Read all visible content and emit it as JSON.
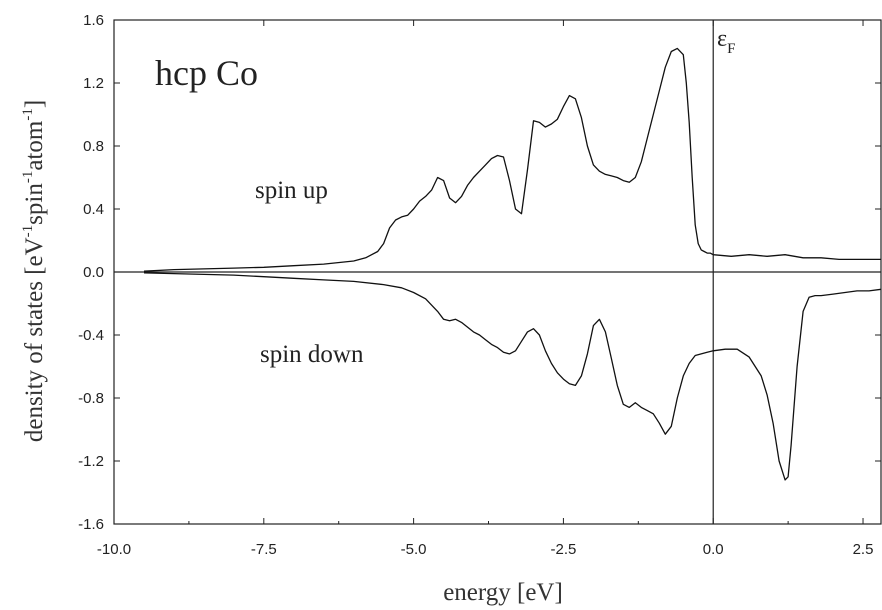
{
  "chart_data": {
    "type": "line",
    "title": "hcp Co",
    "xlabel": "energy [eV]",
    "ylabel": {
      "base": "density of states [eV",
      "sup1": "-1",
      "mid1": "spin",
      "sup2": "-1",
      "mid2": "atom",
      "sup3": "-1",
      "end": "]"
    },
    "xlim": [
      -10.0,
      2.8
    ],
    "ylim": [
      -1.6,
      1.6
    ],
    "xticks": [
      -10.0,
      -7.5,
      -5.0,
      -2.5,
      0.0,
      2.5
    ],
    "xtick_labels": [
      "-10.0",
      "-7.5",
      "-5.0",
      "-2.5",
      "0.0",
      "2.5"
    ],
    "yticks": [
      -1.6,
      -1.2,
      -0.8,
      -0.4,
      0.0,
      0.4,
      0.8,
      1.2,
      1.6
    ],
    "ytick_labels": [
      "-1.6",
      "-1.2",
      "-0.8",
      "-0.4",
      "0.0",
      "0.4",
      "0.8",
      "1.2",
      "1.6"
    ],
    "fermi_level": {
      "x": 0.0,
      "label": "ε",
      "subscript": "F"
    },
    "annotations": [
      {
        "text": "spin up"
      },
      {
        "text": "spin down"
      }
    ],
    "series": [
      {
        "name": "spin up",
        "x": [
          -9.5,
          -9.0,
          -8.5,
          -8.0,
          -7.5,
          -7.0,
          -6.5,
          -6.0,
          -5.8,
          -5.6,
          -5.5,
          -5.4,
          -5.3,
          -5.2,
          -5.1,
          -5.0,
          -4.9,
          -4.8,
          -4.7,
          -4.6,
          -4.5,
          -4.4,
          -4.3,
          -4.2,
          -4.1,
          -4.0,
          -3.9,
          -3.8,
          -3.7,
          -3.6,
          -3.5,
          -3.4,
          -3.3,
          -3.2,
          -3.1,
          -3.0,
          -2.9,
          -2.8,
          -2.7,
          -2.6,
          -2.5,
          -2.4,
          -2.3,
          -2.2,
          -2.1,
          -2.0,
          -1.9,
          -1.8,
          -1.7,
          -1.6,
          -1.5,
          -1.4,
          -1.3,
          -1.2,
          -1.1,
          -1.0,
          -0.9,
          -0.8,
          -0.7,
          -0.6,
          -0.5,
          -0.45,
          -0.4,
          -0.35,
          -0.3,
          -0.25,
          -0.2,
          -0.15,
          -0.1,
          -0.05,
          0.0,
          0.3,
          0.6,
          0.9,
          1.2,
          1.5,
          1.8,
          2.1,
          2.4,
          2.7,
          2.8
        ],
        "y": [
          0.005,
          0.015,
          0.02,
          0.025,
          0.03,
          0.04,
          0.05,
          0.07,
          0.09,
          0.13,
          0.18,
          0.28,
          0.33,
          0.35,
          0.36,
          0.4,
          0.45,
          0.48,
          0.52,
          0.6,
          0.58,
          0.47,
          0.44,
          0.48,
          0.55,
          0.6,
          0.64,
          0.68,
          0.72,
          0.74,
          0.73,
          0.58,
          0.4,
          0.37,
          0.65,
          0.96,
          0.95,
          0.92,
          0.94,
          0.97,
          1.05,
          1.12,
          1.1,
          0.98,
          0.8,
          0.68,
          0.64,
          0.62,
          0.61,
          0.6,
          0.58,
          0.57,
          0.6,
          0.7,
          0.85,
          1.0,
          1.15,
          1.3,
          1.4,
          1.42,
          1.38,
          1.2,
          0.95,
          0.6,
          0.3,
          0.18,
          0.14,
          0.13,
          0.12,
          0.12,
          0.11,
          0.1,
          0.11,
          0.1,
          0.11,
          0.09,
          0.09,
          0.08,
          0.08,
          0.08,
          0.08
        ]
      },
      {
        "name": "spin down",
        "x": [
          -9.5,
          -9.0,
          -8.5,
          -8.0,
          -7.5,
          -7.0,
          -6.5,
          -6.0,
          -5.5,
          -5.2,
          -5.0,
          -4.8,
          -4.6,
          -4.5,
          -4.4,
          -4.3,
          -4.2,
          -4.1,
          -4.0,
          -3.9,
          -3.8,
          -3.7,
          -3.6,
          -3.5,
          -3.4,
          -3.3,
          -3.2,
          -3.1,
          -3.0,
          -2.9,
          -2.8,
          -2.7,
          -2.6,
          -2.5,
          -2.4,
          -2.3,
          -2.2,
          -2.1,
          -2.0,
          -1.9,
          -1.8,
          -1.7,
          -1.6,
          -1.5,
          -1.4,
          -1.3,
          -1.2,
          -1.1,
          -1.0,
          -0.9,
          -0.8,
          -0.7,
          -0.6,
          -0.5,
          -0.4,
          -0.3,
          -0.2,
          -0.1,
          0.0,
          0.2,
          0.4,
          0.6,
          0.8,
          0.9,
          1.0,
          1.1,
          1.2,
          1.25,
          1.3,
          1.4,
          1.5,
          1.6,
          1.7,
          1.8,
          2.0,
          2.2,
          2.4,
          2.6,
          2.8
        ],
        "y": [
          -0.005,
          -0.01,
          -0.015,
          -0.02,
          -0.03,
          -0.04,
          -0.05,
          -0.06,
          -0.08,
          -0.1,
          -0.13,
          -0.17,
          -0.25,
          -0.3,
          -0.31,
          -0.3,
          -0.32,
          -0.35,
          -0.38,
          -0.4,
          -0.43,
          -0.46,
          -0.48,
          -0.51,
          -0.52,
          -0.5,
          -0.44,
          -0.38,
          -0.36,
          -0.4,
          -0.5,
          -0.58,
          -0.64,
          -0.68,
          -0.71,
          -0.72,
          -0.66,
          -0.52,
          -0.34,
          -0.3,
          -0.38,
          -0.55,
          -0.72,
          -0.84,
          -0.86,
          -0.83,
          -0.86,
          -0.88,
          -0.9,
          -0.96,
          -1.03,
          -0.98,
          -0.8,
          -0.66,
          -0.58,
          -0.53,
          -0.52,
          -0.51,
          -0.5,
          -0.49,
          -0.49,
          -0.54,
          -0.66,
          -0.78,
          -0.96,
          -1.2,
          -1.32,
          -1.3,
          -1.1,
          -0.6,
          -0.25,
          -0.16,
          -0.15,
          -0.15,
          -0.14,
          -0.13,
          -0.12,
          -0.12,
          -0.11
        ]
      }
    ]
  }
}
